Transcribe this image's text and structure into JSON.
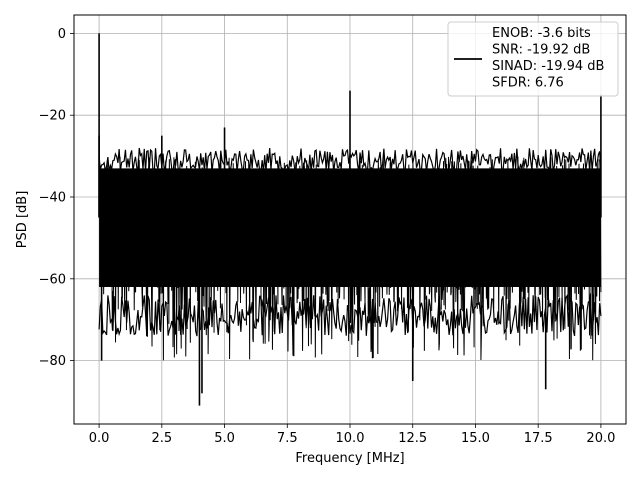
{
  "chart_data": {
    "type": "line",
    "title": "",
    "xlabel": "Frequency [MHz]",
    "ylabel": "PSD [dB]",
    "xlim": [
      -1.0,
      21.0
    ],
    "ylim": [
      -95.5,
      4.5
    ],
    "xticks": [
      0.0,
      2.5,
      5.0,
      7.5,
      10.0,
      12.5,
      15.0,
      17.5,
      20.0
    ],
    "xtick_labels": [
      "0.0",
      "2.5",
      "5.0",
      "7.5",
      "10.0",
      "12.5",
      "15.0",
      "17.5",
      "20.0"
    ],
    "yticks": [
      0,
      -20,
      -40,
      -60,
      -80
    ],
    "ytick_labels": [
      "0",
      "−20",
      "−40",
      "−60",
      "−80"
    ],
    "grid": true,
    "legend_position": "top-right",
    "series_color": "#000000",
    "legend_lines": [
      "ENOB: -3.6 bits",
      "SNR: -19.92 dB",
      "SINAD: -19.94 dB",
      "SFDR: 6.76"
    ],
    "series": [
      {
        "x_range": [
          0.0,
          20.0
        ],
        "noise_band": {
          "upper_envelope_db": [
            -28,
            -33
          ],
          "lower_envelope_db": [
            -92,
            -66
          ],
          "typical_range_db": [
            -68,
            -30
          ]
        },
        "peaks": [
          {
            "x": 0.0,
            "y": 0
          },
          {
            "x": 0.0,
            "y": -25
          },
          {
            "x": 2.5,
            "y": -25
          },
          {
            "x": 5.0,
            "y": -23
          },
          {
            "x": 10.0,
            "y": -14
          },
          {
            "x": 20.0,
            "y": -15
          }
        ],
        "dips": [
          {
            "x": 4.0,
            "y": -91
          },
          {
            "x": 4.1,
            "y": -88
          },
          {
            "x": 12.5,
            "y": -85
          },
          {
            "x": 17.8,
            "y": -87
          },
          {
            "x": 0.1,
            "y": -80
          }
        ]
      }
    ]
  }
}
